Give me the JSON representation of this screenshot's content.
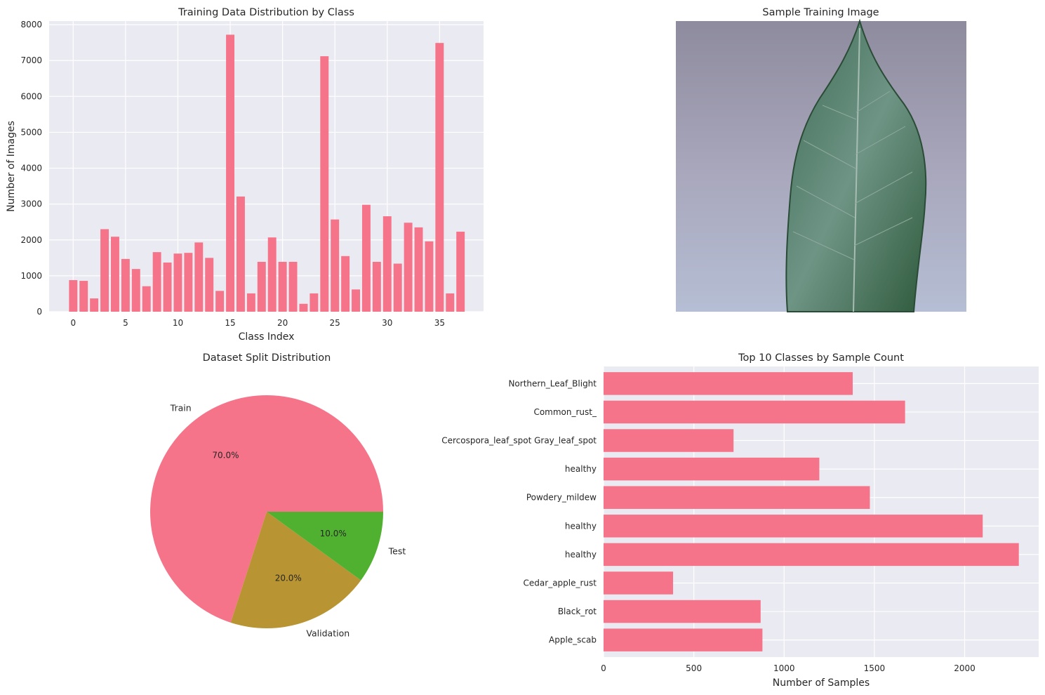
{
  "colors": {
    "axes_bg": "#eaeaf2",
    "bar": "#f6748a",
    "pie": [
      "#f6748a",
      "#b99432",
      "#50b131"
    ]
  },
  "chart_data": [
    {
      "type": "bar",
      "title": "Training Data Distribution by Class",
      "xlabel": "Class Index",
      "ylabel": "Number of Images",
      "xlim": [
        -2.3,
        39.2
      ],
      "ylim": [
        0,
        8100
      ],
      "xticks": [
        0,
        5,
        10,
        15,
        20,
        25,
        30,
        35
      ],
      "yticks": [
        0,
        1000,
        2000,
        3000,
        4000,
        5000,
        6000,
        7000,
        8000
      ],
      "grid": true,
      "x": [
        0,
        1,
        2,
        3,
        4,
        5,
        6,
        7,
        8,
        9,
        10,
        11,
        12,
        13,
        14,
        15,
        16,
        17,
        18,
        19,
        20,
        21,
        22,
        23,
        24,
        25,
        26,
        27,
        28,
        29,
        30,
        31,
        32,
        33,
        34,
        35,
        36,
        37
      ],
      "values": [
        880,
        860,
        370,
        2300,
        2090,
        1470,
        1190,
        710,
        1660,
        1370,
        1620,
        1640,
        1930,
        1500,
        580,
        7720,
        3210,
        510,
        1390,
        2070,
        1390,
        1390,
        220,
        510,
        7120,
        2570,
        1550,
        620,
        2980,
        1390,
        2660,
        1340,
        2480,
        2350,
        1960,
        7490,
        510,
        2230
      ]
    },
    {
      "type": "image",
      "title": "Sample Training Image"
    },
    {
      "type": "pie",
      "title": "Dataset Split Distribution",
      "labels": [
        "Train",
        "Validation",
        "Test"
      ],
      "values": [
        70.0,
        20.0,
        10.0
      ],
      "pct_labels": [
        "70.0%",
        "20.0%",
        "10.0%"
      ]
    },
    {
      "type": "bar",
      "orientation": "horizontal",
      "title": "Top 10 Classes by Sample Count",
      "xlabel": "Number of Samples",
      "xlim": [
        0,
        2410
      ],
      "xticks": [
        0,
        500,
        1000,
        1500,
        2000
      ],
      "grid": true,
      "categories": [
        "Apple_scab",
        "Black_rot",
        "Cedar_apple_rust",
        "healthy",
        "healthy",
        "Powdery_mildew",
        "healthy",
        "Cercospora_leaf_spot Gray_leaf_spot",
        "Common_rust_",
        "Northern_Leaf_Blight"
      ],
      "values": [
        880,
        870,
        385,
        2300,
        2100,
        1475,
        1195,
        720,
        1670,
        1380
      ]
    }
  ]
}
